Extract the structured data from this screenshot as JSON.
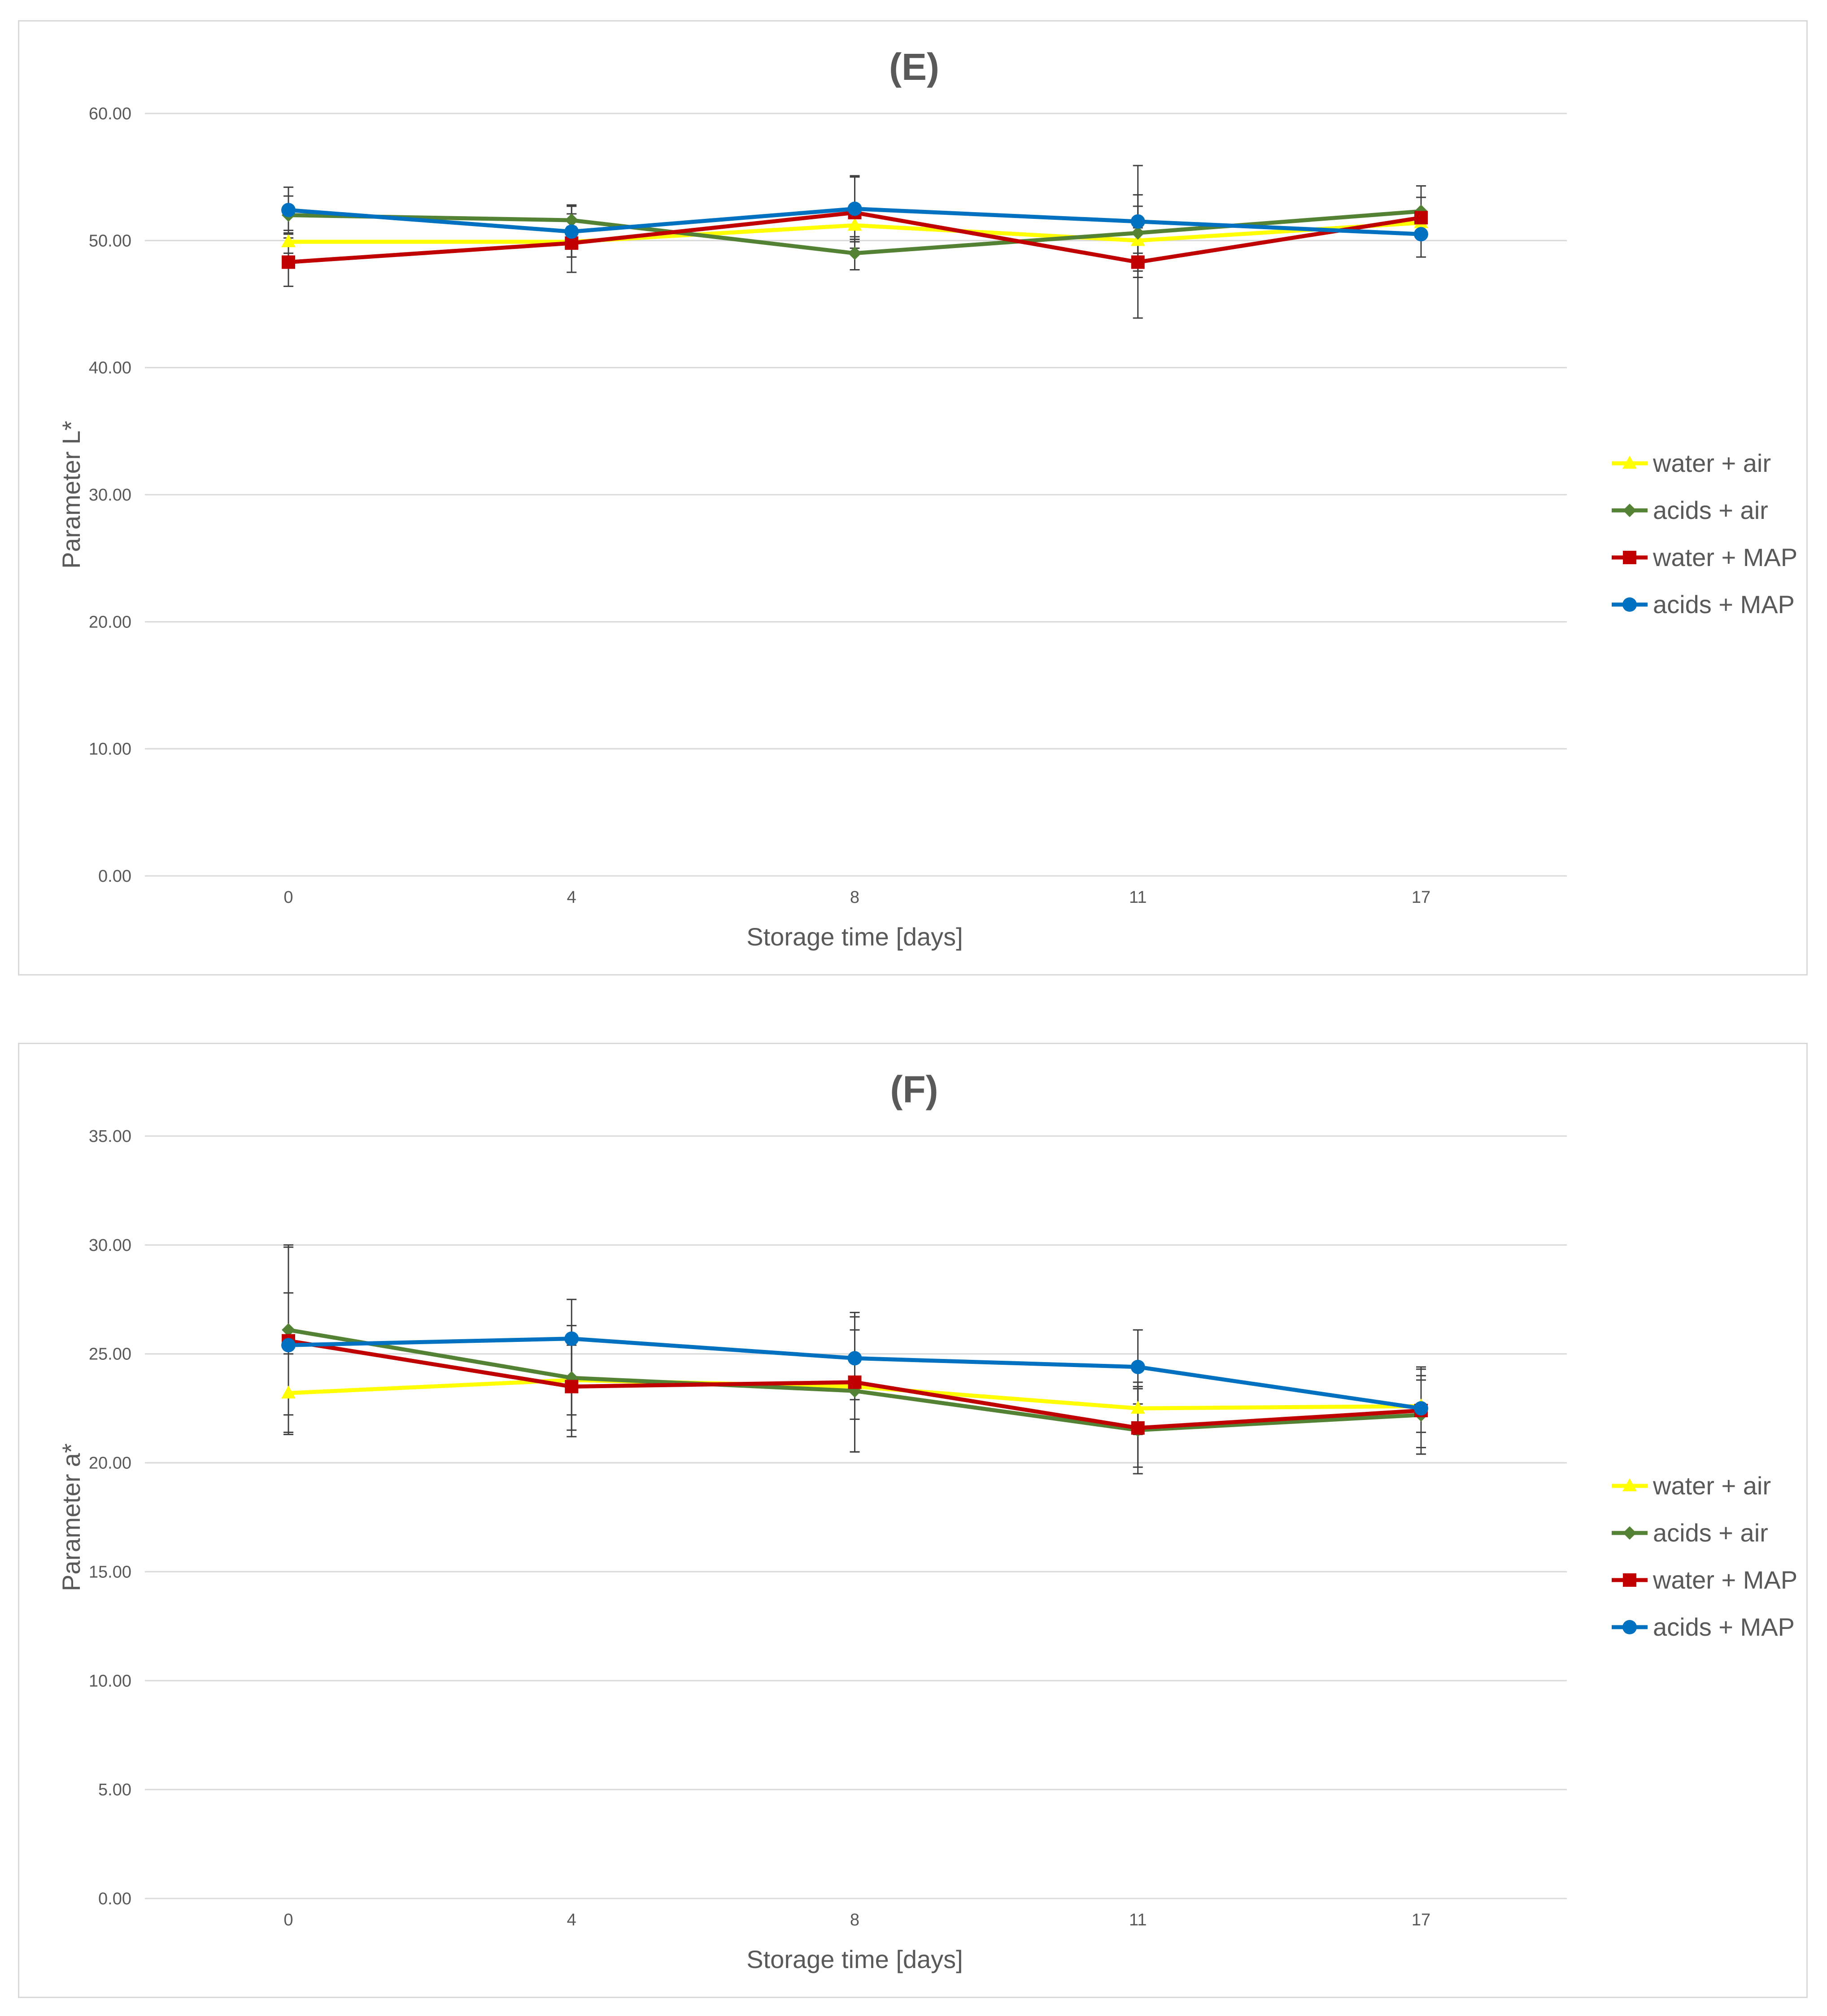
{
  "chart_data": [
    {
      "type": "line",
      "title": "(E)",
      "xlabel": "Storage time [days]",
      "ylabel": "Parameter L*",
      "categories": [
        "0",
        "4",
        "8",
        "11",
        "17"
      ],
      "ylim": [
        0,
        60
      ],
      "yticks": [
        "0.00",
        "10.00",
        "20.00",
        "30.00",
        "40.00",
        "50.00",
        "60.00"
      ],
      "grid": true,
      "legend_position": "right",
      "series": [
        {
          "name": "water + air",
          "color": "#ffff00",
          "marker": "triangle",
          "values": [
            49.9,
            49.9,
            51.2,
            50.0,
            51.4
          ],
          "errors": [
            0.9,
            1.2,
            1.1,
            1.0,
            1.0
          ]
        },
        {
          "name": "acids + air",
          "color": "#548235",
          "marker": "diamond",
          "values": [
            52.0,
            51.6,
            49.0,
            50.6,
            52.3
          ],
          "errors": [
            1.5,
            1.2,
            1.3,
            3.0,
            2.0
          ]
        },
        {
          "name": "water + MAP",
          "color": "#c00000",
          "marker": "square",
          "values": [
            48.3,
            49.8,
            52.2,
            48.3,
            51.8
          ],
          "errors": [
            1.9,
            2.3,
            2.8,
            4.4,
            1.6
          ]
        },
        {
          "name": "acids + MAP",
          "color": "#0070c0",
          "marker": "circle",
          "values": [
            52.4,
            50.7,
            52.5,
            51.5,
            50.5
          ],
          "errors": [
            1.8,
            2.0,
            2.6,
            4.4,
            1.8
          ]
        }
      ]
    },
    {
      "type": "line",
      "title": "(F)",
      "xlabel": "Storage time [days]",
      "ylabel": "Parameter a*",
      "categories": [
        "0",
        "4",
        "8",
        "11",
        "17"
      ],
      "ylim": [
        0,
        35
      ],
      "yticks": [
        "0.00",
        "5.00",
        "10.00",
        "15.00",
        "20.00",
        "25.00",
        "30.00",
        "35.00"
      ],
      "grid": true,
      "legend_position": "right",
      "series": [
        {
          "name": "water + air",
          "color": "#ffff00",
          "marker": "triangle",
          "values": [
            23.2,
            23.8,
            23.5,
            22.5,
            22.6
          ],
          "errors": [
            1.8,
            1.6,
            1.5,
            1.2,
            1.2
          ]
        },
        {
          "name": "acids + air",
          "color": "#548235",
          "marker": "diamond",
          "values": [
            26.1,
            23.9,
            23.3,
            21.5,
            22.2
          ],
          "errors": [
            3.9,
            2.4,
            2.8,
            2.0,
            1.8
          ]
        },
        {
          "name": "water + MAP",
          "color": "#c00000",
          "marker": "square",
          "values": [
            25.6,
            23.5,
            23.7,
            21.6,
            22.4
          ],
          "errors": [
            4.3,
            2.3,
            3.2,
            1.8,
            2.0
          ]
        },
        {
          "name": "acids + MAP",
          "color": "#0070c0",
          "marker": "circle",
          "values": [
            25.4,
            25.7,
            24.8,
            24.4,
            22.5
          ],
          "errors": [
            2.4,
            1.8,
            1.9,
            1.7,
            1.8
          ]
        }
      ]
    }
  ]
}
